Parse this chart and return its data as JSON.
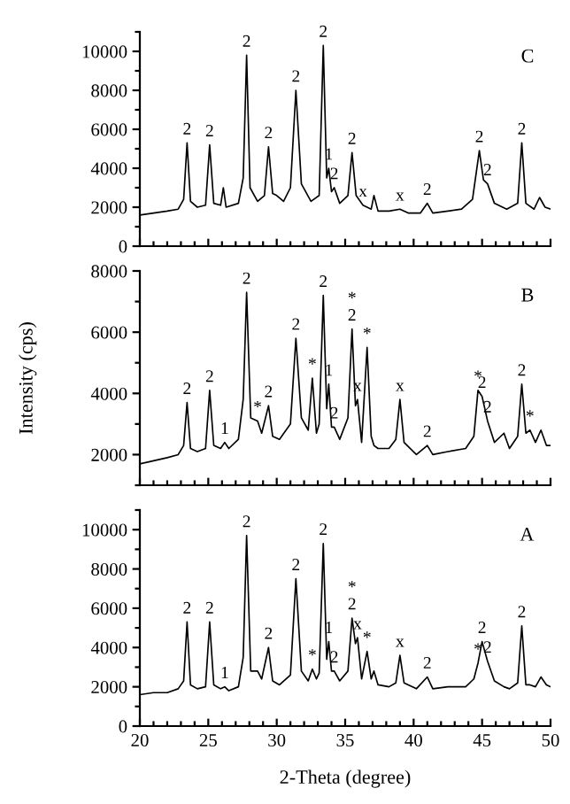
{
  "chart_data": [
    {
      "type": "line",
      "title": "C",
      "tick_labels": "y",
      "grid": false,
      "xlim": [
        20,
        50
      ],
      "ylim": [
        0,
        11000
      ],
      "xticks": [
        20,
        {
          "value": 21,
          "label": null
        },
        {
          "value": 22,
          "label": null
        },
        {
          "value": 23,
          "label": null
        },
        {
          "value": 24,
          "label": null
        },
        25,
        {
          "value": 26,
          "label": null
        },
        {
          "value": 27,
          "label": null
        },
        {
          "value": 28,
          "label": null
        },
        {
          "value": 29,
          "label": null
        },
        30,
        {
          "value": 31,
          "label": null
        },
        {
          "value": 32,
          "label": null
        },
        {
          "value": 33,
          "label": null
        },
        {
          "value": 34,
          "label": null
        },
        35,
        {
          "value": 36,
          "label": null
        },
        {
          "value": 37,
          "label": null
        },
        {
          "value": 38,
          "label": null
        },
        {
          "value": 39,
          "label": null
        },
        40,
        {
          "value": 41,
          "label": null
        },
        {
          "value": 42,
          "label": null
        },
        {
          "value": 43,
          "label": null
        },
        {
          "value": 44,
          "label": null
        },
        45,
        {
          "value": 46,
          "label": null
        },
        {
          "value": 47,
          "label": null
        },
        {
          "value": 48,
          "label": null
        },
        {
          "value": 49,
          "label": null
        },
        50
      ],
      "yticks": [
        0,
        {
          "value": 1000,
          "label": null
        },
        2000,
        {
          "value": 3000,
          "label": null
        },
        4000,
        {
          "value": 5000,
          "label": null
        },
        6000,
        {
          "value": 7000,
          "label": null
        },
        8000,
        {
          "value": 9000,
          "label": null
        },
        10000,
        {
          "value": 11000,
          "label": null
        }
      ],
      "series": [
        {
          "color": "#000000",
          "x": [
            20,
            21,
            22,
            22.8,
            23.2,
            23.45,
            23.7,
            24.2,
            24.8,
            25.1,
            25.4,
            25.9,
            26.1,
            26.3,
            27.2,
            27.55,
            27.8,
            28.05,
            28.6,
            29.1,
            29.4,
            29.7,
            30.0,
            30.5,
            31.0,
            31.4,
            31.8,
            32.5,
            33.1,
            33.4,
            33.65,
            33.8,
            34.0,
            34.2,
            34.6,
            35.2,
            35.5,
            35.8,
            36.3,
            36.9,
            37.1,
            37.4,
            38.2,
            39.0,
            39.6,
            40.5,
            41.0,
            41.4,
            42.5,
            43.5,
            44.3,
            44.8,
            45.1,
            45.4,
            45.9,
            46.8,
            47.6,
            47.9,
            48.2,
            48.8,
            49.2,
            49.6,
            50
          ],
          "values": [
            1600,
            1700,
            1800,
            1900,
            2400,
            5300,
            2300,
            2000,
            2100,
            5200,
            2200,
            2100,
            3000,
            2000,
            2200,
            3500,
            9800,
            3000,
            2300,
            2600,
            5100,
            2700,
            2600,
            2300,
            3000,
            8000,
            3200,
            2300,
            2600,
            10300,
            3500,
            4000,
            2800,
            3000,
            2200,
            2600,
            4800,
            2600,
            2100,
            1900,
            2600,
            1800,
            1800,
            1900,
            1700,
            1700,
            2200,
            1700,
            1800,
            1900,
            2400,
            4900,
            3400,
            3200,
            2200,
            1900,
            2200,
            5300,
            2200,
            1900,
            2500,
            2000,
            1900
          ]
        }
      ],
      "annotations": [
        {
          "text": "2",
          "x": 23.45,
          "y": 5300
        },
        {
          "text": "2",
          "x": 25.1,
          "y": 5200
        },
        {
          "text": "2",
          "x": 27.8,
          "y": 9800
        },
        {
          "text": "2",
          "x": 29.4,
          "y": 5100
        },
        {
          "text": "2",
          "x": 31.4,
          "y": 8000
        },
        {
          "text": "2",
          "x": 33.4,
          "y": 10300
        },
        {
          "text": "1",
          "x": 33.8,
          "y": 4000
        },
        {
          "text": "2",
          "x": 34.2,
          "y": 3000
        },
        {
          "text": "2",
          "x": 35.5,
          "y": 4800
        },
        {
          "text": "x",
          "x": 36.3,
          "y": 2100
        },
        {
          "text": "x",
          "x": 39.0,
          "y": 1900
        },
        {
          "text": "2",
          "x": 41.0,
          "y": 2200
        },
        {
          "text": "2",
          "x": 44.8,
          "y": 4900
        },
        {
          "text": "2",
          "x": 45.4,
          "y": 3200
        },
        {
          "text": "2",
          "x": 47.9,
          "y": 5300
        }
      ]
    },
    {
      "type": "line",
      "title": "B",
      "tick_labels": "y",
      "grid": false,
      "ylabel": "Intensity (cps)",
      "xlim": [
        20,
        50
      ],
      "ylim": [
        1000,
        8000
      ],
      "xticks": [
        20,
        {
          "value": 21,
          "label": null
        },
        {
          "value": 22,
          "label": null
        },
        {
          "value": 23,
          "label": null
        },
        {
          "value": 24,
          "label": null
        },
        25,
        {
          "value": 26,
          "label": null
        },
        {
          "value": 27,
          "label": null
        },
        {
          "value": 28,
          "label": null
        },
        {
          "value": 29,
          "label": null
        },
        30,
        {
          "value": 31,
          "label": null
        },
        {
          "value": 32,
          "label": null
        },
        {
          "value": 33,
          "label": null
        },
        {
          "value": 34,
          "label": null
        },
        35,
        {
          "value": 36,
          "label": null
        },
        {
          "value": 37,
          "label": null
        },
        {
          "value": 38,
          "label": null
        },
        {
          "value": 39,
          "label": null
        },
        40,
        {
          "value": 41,
          "label": null
        },
        {
          "value": 42,
          "label": null
        },
        {
          "value": 43,
          "label": null
        },
        {
          "value": 44,
          "label": null
        },
        45,
        {
          "value": 46,
          "label": null
        },
        {
          "value": 47,
          "label": null
        },
        {
          "value": 48,
          "label": null
        },
        {
          "value": 49,
          "label": null
        },
        50
      ],
      "yticks": [
        {
          "value": 1000,
          "label": null
        },
        2000,
        {
          "value": 3000,
          "label": null
        },
        4000,
        {
          "value": 5000,
          "label": null
        },
        6000,
        {
          "value": 7000,
          "label": null
        },
        8000
      ],
      "series": [
        {
          "color": "#000000",
          "x": [
            20,
            21,
            22,
            22.8,
            23.2,
            23.45,
            23.7,
            24.2,
            24.8,
            25.1,
            25.4,
            25.9,
            26.2,
            26.5,
            27.2,
            27.55,
            27.8,
            28.1,
            28.6,
            28.9,
            29.4,
            29.7,
            30.2,
            31.0,
            31.4,
            31.8,
            32.3,
            32.6,
            32.9,
            33.1,
            33.4,
            33.65,
            33.8,
            34.0,
            34.2,
            34.6,
            35.2,
            35.5,
            35.75,
            35.9,
            36.2,
            36.6,
            36.9,
            37.1,
            37.4,
            38.2,
            38.7,
            39.0,
            39.3,
            40.2,
            41.0,
            41.4,
            42.5,
            43.8,
            44.4,
            44.7,
            45.0,
            45.4,
            45.9,
            46.6,
            47.0,
            47.6,
            47.9,
            48.2,
            48.5,
            48.9,
            49.3,
            49.7,
            50
          ],
          "values": [
            1700,
            1800,
            1900,
            2000,
            2300,
            3700,
            2200,
            2100,
            2200,
            4100,
            2300,
            2200,
            2400,
            2200,
            2500,
            3800,
            7300,
            3200,
            3100,
            2700,
            3600,
            2600,
            2500,
            3000,
            5800,
            3200,
            2800,
            4500,
            2700,
            3000,
            7200,
            3500,
            4300,
            2900,
            2900,
            2500,
            3200,
            6100,
            3600,
            3800,
            2400,
            5500,
            2600,
            2300,
            2200,
            2200,
            2500,
            3800,
            2400,
            2000,
            2300,
            2000,
            2100,
            2200,
            2600,
            4100,
            3900,
            3100,
            2400,
            2700,
            2200,
            2600,
            4300,
            2700,
            2800,
            2400,
            2800,
            2300,
            2300
          ]
        }
      ],
      "annotations": [
        {
          "text": "2",
          "x": 23.45,
          "y": 3700
        },
        {
          "text": "2",
          "x": 25.1,
          "y": 4100
        },
        {
          "text": "1",
          "x": 26.2,
          "y": 2400
        },
        {
          "text": "2",
          "x": 27.8,
          "y": 7300
        },
        {
          "text": "*",
          "x": 28.6,
          "y": 3100
        },
        {
          "text": "2",
          "x": 29.4,
          "y": 3600
        },
        {
          "text": "2",
          "x": 31.4,
          "y": 5800
        },
        {
          "text": "*",
          "x": 32.6,
          "y": 4500
        },
        {
          "text": "2",
          "x": 33.4,
          "y": 7200
        },
        {
          "text": "1",
          "x": 33.8,
          "y": 4300
        },
        {
          "text": "2",
          "x": 34.2,
          "y": 2900
        },
        {
          "text": "2",
          "x": 35.5,
          "y": 6100
        },
        {
          "text": "*",
          "x": 35.5,
          "y": 6100
        },
        {
          "text": "x",
          "x": 35.9,
          "y": 3800
        },
        {
          "text": "*",
          "x": 36.6,
          "y": 5500
        },
        {
          "text": "x",
          "x": 39.0,
          "y": 3800
        },
        {
          "text": "2",
          "x": 41.0,
          "y": 2300
        },
        {
          "text": "*",
          "x": 44.7,
          "y": 4100
        },
        {
          "text": "2",
          "x": 45.0,
          "y": 3900
        },
        {
          "text": "2",
          "x": 45.4,
          "y": 3100
        },
        {
          "text": "2",
          "x": 47.9,
          "y": 4300
        },
        {
          "text": "*",
          "x": 48.5,
          "y": 2800
        }
      ]
    },
    {
      "type": "line",
      "title": "A",
      "grid": false,
      "xlabel": "2-Theta (degree)",
      "xlim": [
        20,
        50
      ],
      "ylim": [
        0,
        11000
      ],
      "xticks": [
        20,
        {
          "value": 21,
          "label": null
        },
        {
          "value": 22,
          "label": null
        },
        {
          "value": 23,
          "label": null
        },
        {
          "value": 24,
          "label": null
        },
        25,
        {
          "value": 26,
          "label": null
        },
        {
          "value": 27,
          "label": null
        },
        {
          "value": 28,
          "label": null
        },
        {
          "value": 29,
          "label": null
        },
        30,
        {
          "value": 31,
          "label": null
        },
        {
          "value": 32,
          "label": null
        },
        {
          "value": 33,
          "label": null
        },
        {
          "value": 34,
          "label": null
        },
        35,
        {
          "value": 36,
          "label": null
        },
        {
          "value": 37,
          "label": null
        },
        {
          "value": 38,
          "label": null
        },
        {
          "value": 39,
          "label": null
        },
        40,
        {
          "value": 41,
          "label": null
        },
        {
          "value": 42,
          "label": null
        },
        {
          "value": 43,
          "label": null
        },
        {
          "value": 44,
          "label": null
        },
        45,
        {
          "value": 46,
          "label": null
        },
        {
          "value": 47,
          "label": null
        },
        {
          "value": 48,
          "label": null
        },
        {
          "value": 49,
          "label": null
        },
        50
      ],
      "yticks": [
        0,
        {
          "value": 1000,
          "label": null
        },
        2000,
        {
          "value": 3000,
          "label": null
        },
        4000,
        {
          "value": 5000,
          "label": null
        },
        6000,
        {
          "value": 7000,
          "label": null
        },
        8000,
        {
          "value": 9000,
          "label": null
        },
        10000,
        {
          "value": 11000,
          "label": null
        }
      ],
      "series": [
        {
          "color": "#000000",
          "x": [
            20,
            21,
            22,
            22.8,
            23.2,
            23.45,
            23.7,
            24.2,
            24.8,
            25.1,
            25.4,
            25.9,
            26.2,
            26.5,
            27.2,
            27.55,
            27.8,
            28.1,
            28.6,
            28.9,
            29.4,
            29.7,
            30.2,
            31.0,
            31.4,
            31.8,
            32.3,
            32.6,
            32.9,
            33.1,
            33.4,
            33.65,
            33.8,
            34.0,
            34.2,
            34.6,
            35.2,
            35.5,
            35.75,
            35.9,
            36.2,
            36.6,
            36.9,
            37.1,
            37.4,
            38.2,
            38.7,
            39.0,
            39.3,
            40.2,
            41.0,
            41.4,
            42.5,
            43.8,
            44.4,
            44.7,
            45.0,
            45.4,
            45.9,
            46.6,
            47.0,
            47.6,
            47.9,
            48.2,
            48.5,
            48.9,
            49.3,
            49.7,
            50
          ],
          "values": [
            1600,
            1700,
            1700,
            1900,
            2300,
            5300,
            2100,
            1900,
            2000,
            5300,
            2100,
            1900,
            2000,
            1800,
            2000,
            3500,
            9700,
            2800,
            2800,
            2400,
            4000,
            2300,
            2100,
            2600,
            7500,
            2800,
            2300,
            2900,
            2400,
            2700,
            9300,
            3400,
            4300,
            2800,
            2800,
            2300,
            2800,
            5500,
            4200,
            4500,
            2400,
            3800,
            2400,
            2800,
            2100,
            2000,
            2200,
            3600,
            2200,
            1900,
            2500,
            1900,
            2000,
            2000,
            2400,
            3200,
            4300,
            3300,
            2300,
            2000,
            1900,
            2200,
            5100,
            2100,
            2100,
            2000,
            2500,
            2100,
            2000
          ]
        }
      ],
      "annotations": [
        {
          "text": "2",
          "x": 23.45,
          "y": 5300
        },
        {
          "text": "2",
          "x": 25.1,
          "y": 5300
        },
        {
          "text": "1",
          "x": 26.2,
          "y": 2000
        },
        {
          "text": "2",
          "x": 27.8,
          "y": 9700
        },
        {
          "text": "2",
          "x": 29.4,
          "y": 4000
        },
        {
          "text": "2",
          "x": 31.4,
          "y": 7500
        },
        {
          "text": "*",
          "x": 32.6,
          "y": 2900
        },
        {
          "text": "2",
          "x": 33.4,
          "y": 9300
        },
        {
          "text": "1",
          "x": 33.8,
          "y": 4300
        },
        {
          "text": "2",
          "x": 34.2,
          "y": 2800
        },
        {
          "text": "2",
          "x": 35.5,
          "y": 5500
        },
        {
          "text": "*",
          "x": 35.5,
          "y": 5500
        },
        {
          "text": "x",
          "x": 35.9,
          "y": 4500
        },
        {
          "text": "*",
          "x": 36.6,
          "y": 3800
        },
        {
          "text": "x",
          "x": 39.0,
          "y": 3600
        },
        {
          "text": "2",
          "x": 41.0,
          "y": 2500
        },
        {
          "text": "*",
          "x": 44.7,
          "y": 3200
        },
        {
          "text": "2",
          "x": 45.0,
          "y": 4300
        },
        {
          "text": "2",
          "x": 45.4,
          "y": 3300
        },
        {
          "text": "2",
          "x": 47.9,
          "y": 5100
        }
      ]
    }
  ]
}
